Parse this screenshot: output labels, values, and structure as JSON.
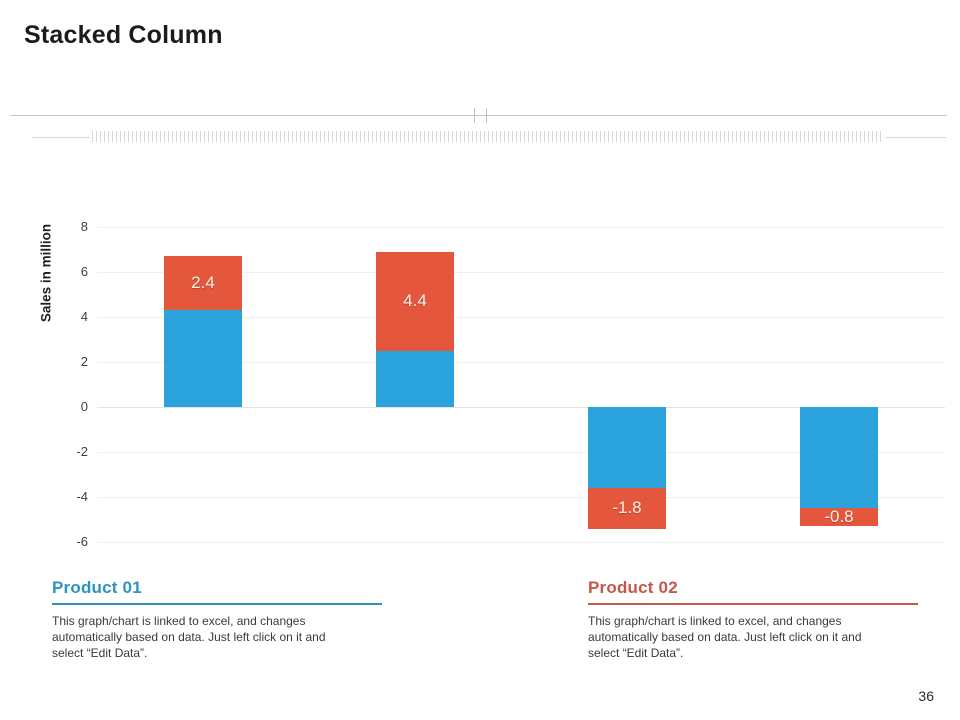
{
  "slide": {
    "title": "Stacked Column",
    "page_number": "36"
  },
  "chart_data": {
    "type": "bar",
    "stacked": true,
    "categories": [
      "",
      "",
      "",
      ""
    ],
    "series": [
      {
        "name": "Product 01",
        "color": "#2AA2DB",
        "values": [
          4.3,
          2.5,
          -3.6,
          -4.5
        ]
      },
      {
        "name": "Product 02",
        "color": "#E5573C",
        "values": [
          2.4,
          4.4,
          -1.8,
          -0.8
        ]
      }
    ],
    "data_labels": {
      "series": "Product 02",
      "values": [
        "2.4",
        "4.4",
        "-1.8",
        "-0.8"
      ],
      "color": "#FBF3EA"
    },
    "ylabel": "Sales in million",
    "yticks": [
      8,
      6,
      4,
      2,
      0,
      -2,
      -4,
      -6
    ],
    "ylim": [
      -6.9,
      8.9
    ],
    "grid": true,
    "legend": "none"
  },
  "footers": [
    {
      "heading": "Product 01",
      "accent_color": "#2D93BE",
      "body_lines": [
        "This graph/chart is linked to excel, and changes",
        "automatically based on data. Just left click on it and",
        "select “Edit Data”."
      ]
    },
    {
      "heading": "Product 02",
      "accent_color": "#C8564A",
      "body_lines": [
        "This graph/chart is linked to excel, and changes",
        "automatically based on data. Just left click on it and",
        "select “Edit Data”."
      ]
    }
  ]
}
